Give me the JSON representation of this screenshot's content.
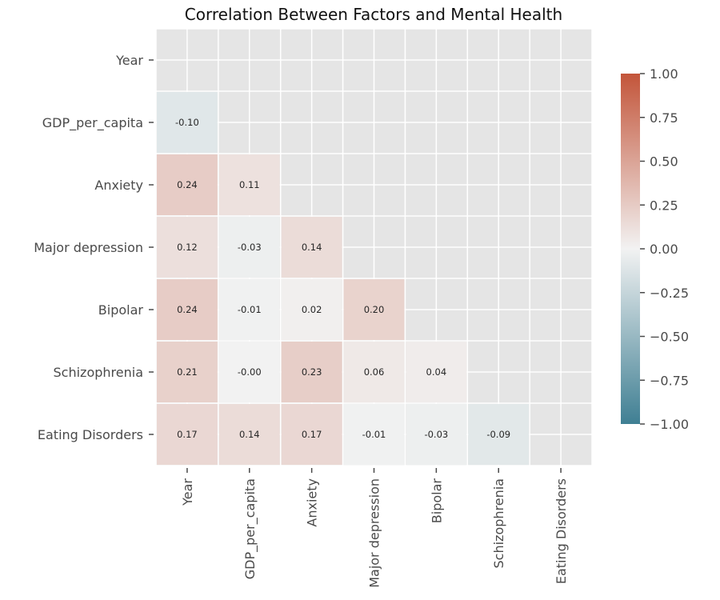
{
  "chart_data": {
    "type": "heatmap",
    "title": "Correlation Between Factors and Mental Health",
    "variables": [
      "Year",
      "GDP_per_capita",
      "Anxiety",
      "Major depression",
      "Bipolar",
      "Schizophrenia",
      "Eating Disorders"
    ],
    "mask": "upper-triangle-including-diagonal",
    "values": [
      [
        null,
        null,
        null,
        null,
        null,
        null,
        null
      ],
      [
        -0.1,
        null,
        null,
        null,
        null,
        null,
        null
      ],
      [
        0.24,
        0.11,
        null,
        null,
        null,
        null,
        null
      ],
      [
        0.12,
        -0.03,
        0.14,
        null,
        null,
        null,
        null
      ],
      [
        0.24,
        -0.01,
        0.02,
        0.2,
        null,
        null,
        null
      ],
      [
        0.21,
        -0.0,
        0.23,
        0.06,
        0.04,
        null,
        null
      ],
      [
        0.17,
        0.14,
        0.17,
        -0.01,
        -0.03,
        -0.09,
        null
      ]
    ],
    "value_labels": [
      [
        null,
        null,
        null,
        null,
        null,
        null,
        null
      ],
      [
        "-0.10",
        null,
        null,
        null,
        null,
        null,
        null
      ],
      [
        "0.24",
        "0.11",
        null,
        null,
        null,
        null,
        null
      ],
      [
        "0.12",
        "-0.03",
        "0.14",
        null,
        null,
        null,
        null
      ],
      [
        "0.24",
        "-0.01",
        "0.02",
        "0.20",
        null,
        null,
        null
      ],
      [
        "0.21",
        "-0.00",
        "0.23",
        "0.06",
        "0.04",
        null,
        null
      ],
      [
        "0.17",
        "0.14",
        "0.17",
        "-0.01",
        "-0.03",
        "-0.09",
        null
      ]
    ],
    "colorbar": {
      "range": [
        -1.0,
        1.0
      ],
      "ticks": [
        1.0,
        0.75,
        0.5,
        0.25,
        0.0,
        -0.25,
        -0.5,
        -0.75,
        -1.0
      ],
      "tick_labels": [
        "1.00",
        "0.75",
        "0.50",
        "0.25",
        "0.00",
        "−0.25",
        "−0.50",
        "−0.75",
        "−1.00"
      ],
      "colors": {
        "negative": "#3f7f93",
        "neutral": "#f2f2f2",
        "positive": "#c3553a"
      }
    },
    "grid": true,
    "background_color": "#e5e5e5",
    "grid_color": "#ffffff"
  }
}
